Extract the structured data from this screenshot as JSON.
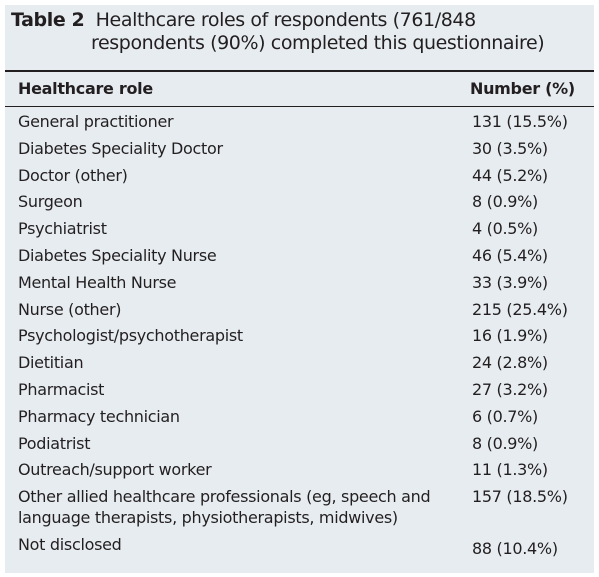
{
  "caption": {
    "label": "Table 2",
    "text": "Healthcare roles of respondents (761/848 respondents (90%) completed this questionnaire)"
  },
  "header": {
    "role": "Healthcare role",
    "number": "Number (%)"
  },
  "rows": [
    {
      "role": "General practitioner",
      "number": "131 (15.5%)"
    },
    {
      "role": "Diabetes Speciality Doctor",
      "number": "30 (3.5%)"
    },
    {
      "role": "Doctor (other)",
      "number": "44 (5.2%)"
    },
    {
      "role": "Surgeon",
      "number": "8 (0.9%)"
    },
    {
      "role": "Psychiatrist",
      "number": "4 (0.5%)"
    },
    {
      "role": "Diabetes Speciality Nurse",
      "number": "46 (5.4%)"
    },
    {
      "role": "Mental Health Nurse",
      "number": "33 (3.9%)"
    },
    {
      "role": "Nurse (other)",
      "number": "215 (25.4%)"
    },
    {
      "role": "Psychologist/psychotherapist",
      "number": "16 (1.9%)"
    },
    {
      "role": "Dietitian",
      "number": "24 (2.8%)"
    },
    {
      "role": "Pharmacist",
      "number": "27 (3.2%)"
    },
    {
      "role": "Pharmacy technician",
      "number": "6 (0.7%)"
    },
    {
      "role": "Podiatrist",
      "number": "8 (0.9%)"
    },
    {
      "role": "Outreach/support worker",
      "number": "11 (1.3%)"
    },
    {
      "role": "Other allied healthcare professionals (eg, speech and language therapists, physiotherapists, midwives)",
      "number": "157 (18.5%)"
    },
    {
      "role": "Not disclosed",
      "number": "88 (10.4%)"
    }
  ],
  "colors": {
    "background": "#e6ecf0",
    "text": "#231f20",
    "rule": "#231f20"
  }
}
